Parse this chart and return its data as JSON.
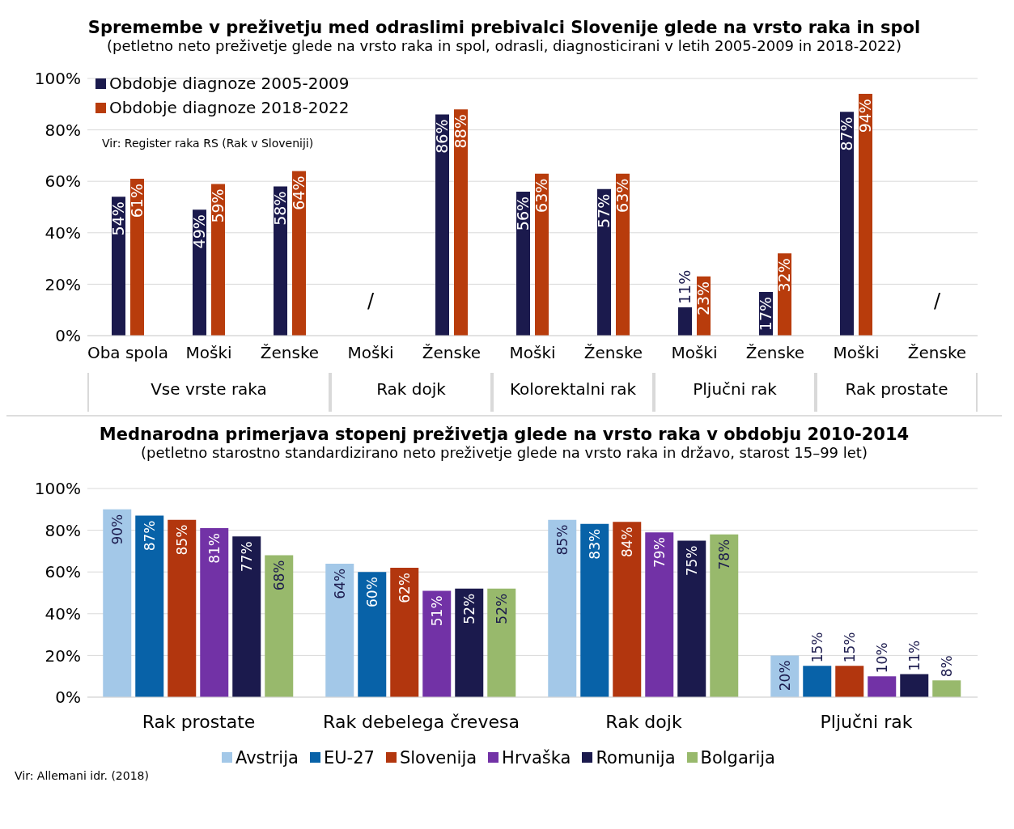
{
  "chart_data": [
    {
      "type": "bar",
      "title": "Spremembe v preživetju med odraslimi prebivalci Slovenije glede na vrsto raka in spol",
      "subtitle": "(petletno neto preživetje glede na vrsto raka in spol, odrasli, diagnosticirani v letih 2005-2009 in 2018-2022)",
      "categories": [
        "Oba spola",
        "Moški",
        "Ženske",
        "Moški",
        "Ženske",
        "Moški",
        "Ženske",
        "Moški",
        "Ženske",
        "Moški",
        "Ženske"
      ],
      "series": [
        {
          "name": "Obdobje diagnoze 2005-2009",
          "color": "#1b1a4d",
          "values": [
            54,
            49,
            58,
            null,
            86,
            56,
            57,
            11,
            17,
            87,
            null
          ],
          "value_labels": [
            "54%",
            "49%",
            "58%",
            null,
            "86%",
            "56%",
            "57%",
            "11%",
            "17%",
            "87%",
            null
          ]
        },
        {
          "name": "Obdobje diagnoze 2018-2022",
          "color": "#b83c0c",
          "values": [
            61,
            59,
            64,
            null,
            88,
            63,
            63,
            23,
            32,
            94,
            null
          ],
          "value_labels": [
            "61%",
            "59%",
            "64%",
            null,
            "88%",
            "63%",
            "63%",
            "23%",
            "32%",
            "94%",
            null
          ]
        }
      ],
      "ylim": [
        0,
        100
      ],
      "yticks": [
        {
          "value": 0,
          "label": "0%"
        },
        {
          "value": 20,
          "label": "20%"
        },
        {
          "value": 40,
          "label": "40%"
        },
        {
          "value": 60,
          "label": "60%"
        },
        {
          "value": 80,
          "label": "80%"
        },
        {
          "value": 100,
          "label": "100%"
        }
      ],
      "grid": "y",
      "legend": "top left",
      "annotations": [
        "Vir: Register raka RS (Rak v Sloveniji)",
        "Vse vrste raka",
        "Rak dojk",
        "Kolorektalni rak",
        "Pljučni rak",
        "Rak prostate",
        "/",
        "/"
      ]
    },
    {
      "type": "bar",
      "title": "Mednarodna primerjava stopenj preživetja glede na vrsto raka v obdobju 2010-2014",
      "subtitle": "(petletno starostno standardizirano neto preživetje glede na vrsto raka in državo, starost 15–99 let)",
      "categories": [
        "Rak prostate",
        "Rak debelega črevesa",
        "Rak dojk",
        "Pljučni rak"
      ],
      "series": [
        {
          "name": "Avstrija",
          "color": "#a3c8e8",
          "values": [
            90,
            64,
            85,
            20
          ],
          "value_labels": [
            "90%",
            "64%",
            "85%",
            "20%"
          ]
        },
        {
          "name": "EU-27",
          "color": "#0862a8",
          "values": [
            87,
            60,
            83,
            15
          ],
          "value_labels": [
            "87%",
            "60%",
            "83%",
            "15%"
          ]
        },
        {
          "name": "Slovenija",
          "color": "#b2360e",
          "values": [
            85,
            62,
            84,
            15
          ],
          "value_labels": [
            "85%",
            "62%",
            "84%",
            "15%"
          ]
        },
        {
          "name": "Hrvaška",
          "color": "#7232a6",
          "values": [
            81,
            51,
            79,
            10
          ],
          "value_labels": [
            "81%",
            "51%",
            "79%",
            "10%"
          ]
        },
        {
          "name": "Romunija",
          "color": "#1b1a4d",
          "values": [
            77,
            52,
            75,
            11
          ],
          "value_labels": [
            "77%",
            "52%",
            "75%",
            "11%"
          ]
        },
        {
          "name": "Bolgarija",
          "color": "#98b96c",
          "values": [
            68,
            52,
            78,
            8
          ],
          "value_labels": [
            "68%",
            "52%",
            "78%",
            "8%"
          ]
        }
      ],
      "ylim": [
        0,
        100
      ],
      "yticks": [
        {
          "value": 0,
          "label": "0%"
        },
        {
          "value": 20,
          "label": "20%"
        },
        {
          "value": 40,
          "label": "40%"
        },
        {
          "value": 60,
          "label": "60%"
        },
        {
          "value": 80,
          "label": "80%"
        },
        {
          "value": 100,
          "label": "100%"
        }
      ],
      "grid": "y",
      "legend": "bottom",
      "annotations": [
        "Vir: Allemani idr. (2018)"
      ]
    }
  ]
}
